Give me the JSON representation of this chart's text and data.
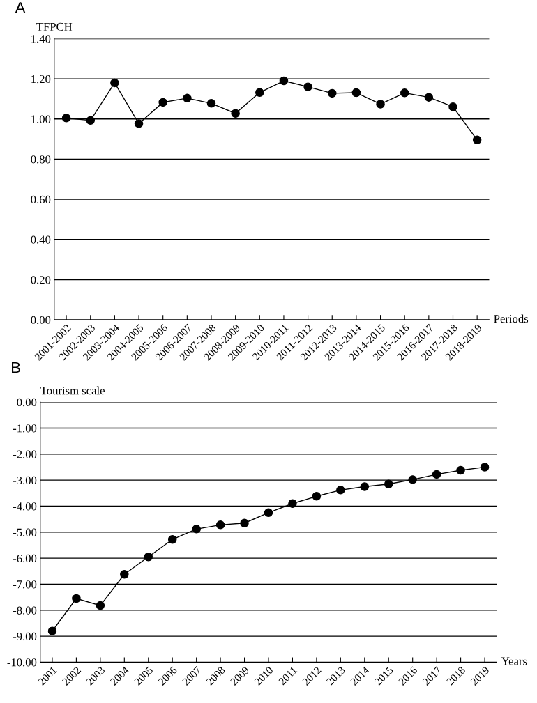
{
  "chart_data": [
    {
      "type": "line",
      "ylabel": "TFPCH",
      "xlabel": "Periods",
      "annotations": [
        "A"
      ],
      "categories": [
        "2001-2002",
        "2002-2003",
        "2003-2004",
        "2004-2005",
        "2005-2006",
        "2006-2007",
        "2007-2008",
        "2008-2009",
        "2009-2010",
        "2010-2011",
        "2011-2012",
        "2012-2013",
        "2013-2014",
        "2014-2015",
        "2015-2016",
        "2016-2017",
        "2017-2018",
        "2018-2019"
      ],
      "series": [
        {
          "color": "#000000",
          "values": [
            1.005,
            0.993,
            1.18,
            0.977,
            1.083,
            1.104,
            1.078,
            1.028,
            1.132,
            1.19,
            1.16,
            1.128,
            1.131,
            1.074,
            1.13,
            1.108,
            1.061,
            0.896
          ]
        }
      ],
      "ylim": [
        0,
        1.4
      ],
      "yticks": [
        {
          "value": 0,
          "label": "0.00"
        },
        {
          "value": 0.2,
          "label": "0.20"
        },
        {
          "value": 0.4,
          "label": "0.40"
        },
        {
          "value": 0.6,
          "label": "0.60"
        },
        {
          "value": 0.8,
          "label": "0.80"
        },
        {
          "value": 1.0,
          "label": "1.00"
        },
        {
          "value": 1.2,
          "label": "1.20"
        },
        {
          "value": 1.4,
          "label": "1.40"
        }
      ],
      "grid": "y",
      "marker": "circle",
      "line_style": "solid"
    },
    {
      "type": "line",
      "ylabel": "Tourism scale",
      "xlabel": "Years",
      "annotations": [
        "B"
      ],
      "categories": [
        "2001",
        "2002",
        "2003",
        "2004",
        "2005",
        "2006",
        "2007",
        "2008",
        "2009",
        "2010",
        "2011",
        "2012",
        "2013",
        "2014",
        "2015",
        "2016",
        "2017",
        "2018",
        "2019"
      ],
      "series": [
        {
          "color": "#000000",
          "values": [
            -8.8,
            -7.55,
            -7.82,
            -6.62,
            -5.95,
            -5.28,
            -4.88,
            -4.72,
            -4.65,
            -4.25,
            -3.9,
            -3.62,
            -3.38,
            -3.25,
            -3.15,
            -2.98,
            -2.78,
            -2.62,
            -2.5
          ]
        }
      ],
      "ylim": [
        -10,
        0
      ],
      "yticks": [
        {
          "value": -10,
          "label": "-10.00"
        },
        {
          "value": -9,
          "label": "-9.00"
        },
        {
          "value": -8,
          "label": "-8.00"
        },
        {
          "value": -7,
          "label": "-7.00"
        },
        {
          "value": -6,
          "label": "-6.00"
        },
        {
          "value": -5,
          "label": "-5.00"
        },
        {
          "value": -4,
          "label": "-4.00"
        },
        {
          "value": -3,
          "label": "-3.00"
        },
        {
          "value": -2,
          "label": "-2.00"
        },
        {
          "value": -1,
          "label": "-1.00"
        },
        {
          "value": 0,
          "label": "0.00"
        }
      ],
      "grid": "y",
      "marker": "circle",
      "line_style": "solid"
    }
  ]
}
